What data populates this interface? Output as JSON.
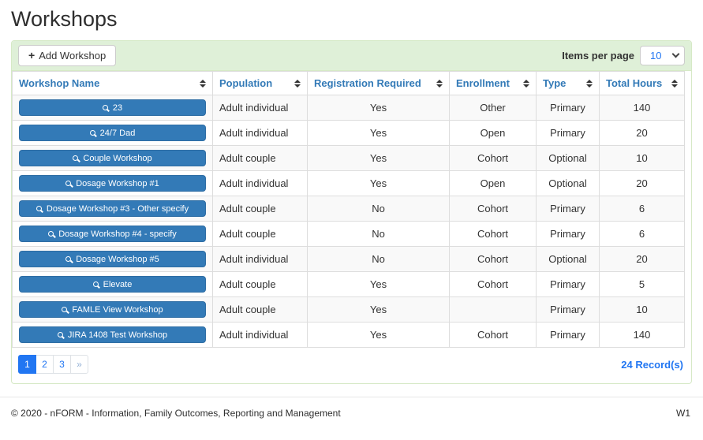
{
  "page": {
    "title": "Workshops",
    "footer": {
      "copyright": "© 2020 - nFORM - Information, Family Outcomes, Reporting and Management",
      "version": "W1"
    }
  },
  "toolbar": {
    "add_button_label": "Add Workshop",
    "items_per_page_label": "Items per page",
    "items_per_page_value": "10"
  },
  "table": {
    "columns": [
      {
        "label": "Workshop Name"
      },
      {
        "label": "Population"
      },
      {
        "label": "Registration Required"
      },
      {
        "label": "Enrollment"
      },
      {
        "label": "Type"
      },
      {
        "label": "Total Hours"
      }
    ],
    "rows": [
      {
        "name": "23",
        "population": "Adult individual",
        "registration_required": "Yes",
        "enrollment": "Other",
        "type": "Primary",
        "total_hours": "140"
      },
      {
        "name": "24/7 Dad",
        "population": "Adult individual",
        "registration_required": "Yes",
        "enrollment": "Open",
        "type": "Primary",
        "total_hours": "20"
      },
      {
        "name": "Couple Workshop",
        "population": "Adult couple",
        "registration_required": "Yes",
        "enrollment": "Cohort",
        "type": "Optional",
        "total_hours": "10"
      },
      {
        "name": "Dosage Workshop #1",
        "population": "Adult individual",
        "registration_required": "Yes",
        "enrollment": "Open",
        "type": "Optional",
        "total_hours": "20"
      },
      {
        "name": "Dosage Workshop #3 - Other specify",
        "population": "Adult couple",
        "registration_required": "No",
        "enrollment": "Cohort",
        "type": "Primary",
        "total_hours": "6"
      },
      {
        "name": "Dosage Workshop #4 - specify",
        "population": "Adult couple",
        "registration_required": "No",
        "enrollment": "Cohort",
        "type": "Primary",
        "total_hours": "6"
      },
      {
        "name": "Dosage Workshop #5",
        "population": "Adult individual",
        "registration_required": "No",
        "enrollment": "Cohort",
        "type": "Optional",
        "total_hours": "20"
      },
      {
        "name": "Elevate",
        "population": "Adult couple",
        "registration_required": "Yes",
        "enrollment": "Cohort",
        "type": "Primary",
        "total_hours": "5"
      },
      {
        "name": "FAMLE View Workshop",
        "population": "Adult couple",
        "registration_required": "Yes",
        "enrollment": "",
        "type": "Primary",
        "total_hours": "10"
      },
      {
        "name": "JIRA 1408 Test Workshop",
        "population": "Adult individual",
        "registration_required": "Yes",
        "enrollment": "Cohort",
        "type": "Primary",
        "total_hours": "140"
      }
    ]
  },
  "pagination": {
    "pages": [
      "1",
      "2",
      "3",
      "»"
    ],
    "active_page": "1",
    "record_count": "24 Record(s)"
  },
  "colors": {
    "header_link_blue": "#337ab7",
    "workshop_button_blue": "#337ab7",
    "pagination_blue": "#2176f2",
    "panel_heading_bg": "#dff0d8",
    "panel_border_green": "#d6e9c6",
    "row_stripe_gray": "#f9f9f9",
    "cell_border_gray": "#dddddd"
  }
}
